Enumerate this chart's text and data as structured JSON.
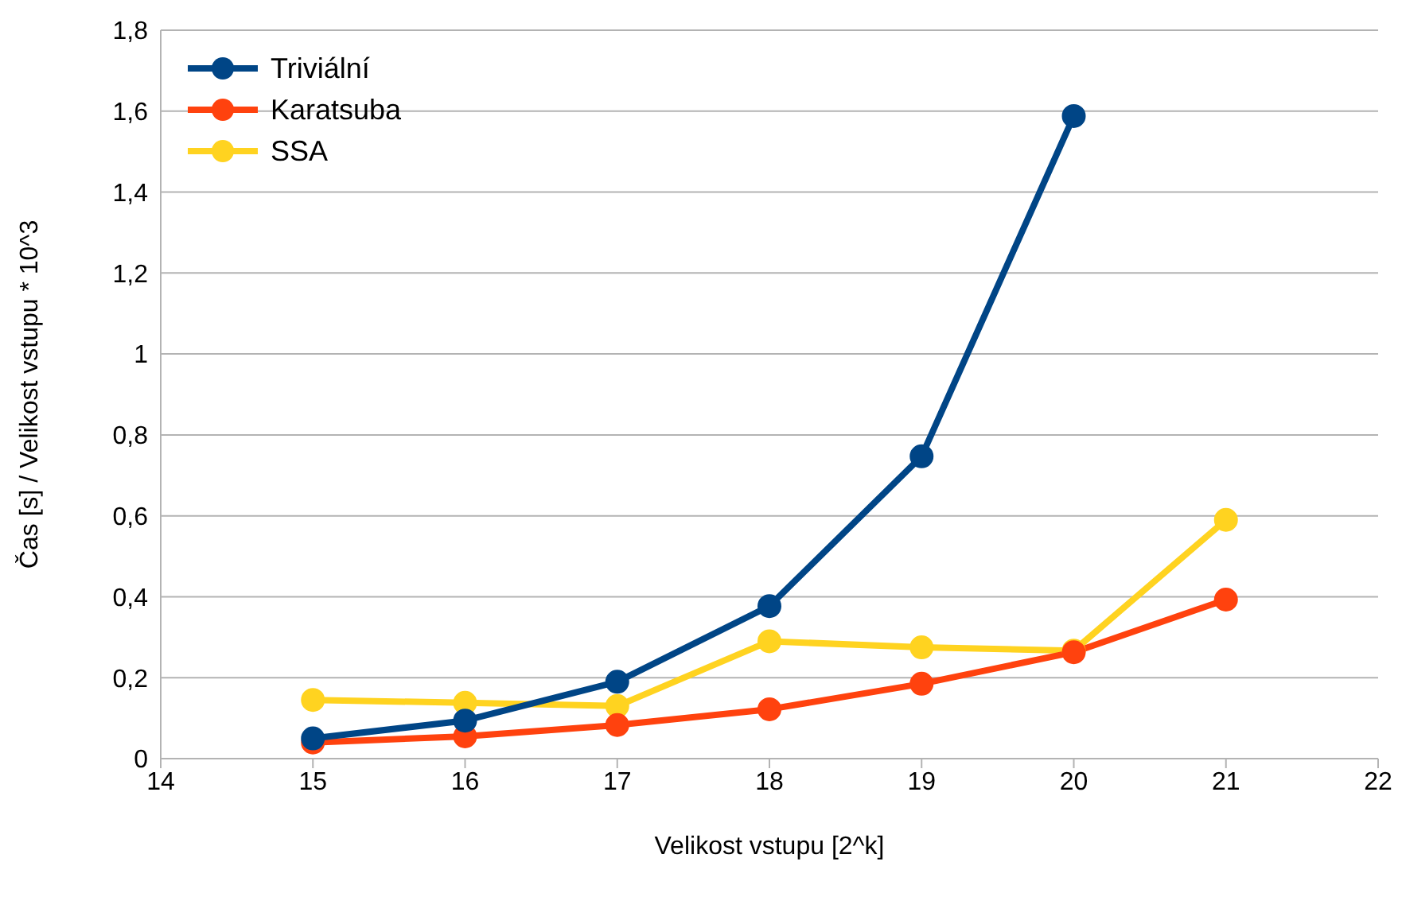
{
  "chart_data": {
    "type": "line",
    "xlabel": "Velikost vstupu [2^k]",
    "ylabel": "Čas [s] / Velikost vstupu * 10^3",
    "x": [
      15,
      16,
      17,
      18,
      19,
      20,
      21
    ],
    "series": [
      {
        "name": "Triviální",
        "color": "#004586",
        "values": [
          0.05,
          0.094,
          0.19,
          0.377,
          0.747,
          1.588,
          null
        ]
      },
      {
        "name": "Karatsuba",
        "color": "#ff420e",
        "values": [
          0.04,
          0.055,
          0.083,
          0.122,
          0.185,
          0.263,
          0.393
        ]
      },
      {
        "name": "SSA",
        "color": "#ffd320",
        "values": [
          0.145,
          0.138,
          0.13,
          0.29,
          0.275,
          0.267,
          0.59
        ]
      }
    ],
    "xlim": [
      14,
      22
    ],
    "xticks": [
      14,
      15,
      16,
      17,
      18,
      19,
      20,
      21,
      22
    ],
    "ylim": [
      0,
      1.8
    ],
    "yticks": [
      0,
      {
        "value": 0.2,
        "label": "0,2"
      },
      {
        "value": 0.4,
        "label": "0,4"
      },
      {
        "value": 0.6,
        "label": "0,6"
      },
      {
        "value": 0.8,
        "label": "0,8"
      },
      1,
      {
        "value": 1.2,
        "label": "1,2"
      },
      {
        "value": 1.4,
        "label": "1,4"
      },
      {
        "value": 1.6,
        "label": "1,6"
      },
      {
        "value": 1.8,
        "label": "1,8"
      }
    ],
    "grid": "y",
    "legend": "top left",
    "marker": "circle",
    "line_style": "solid"
  }
}
